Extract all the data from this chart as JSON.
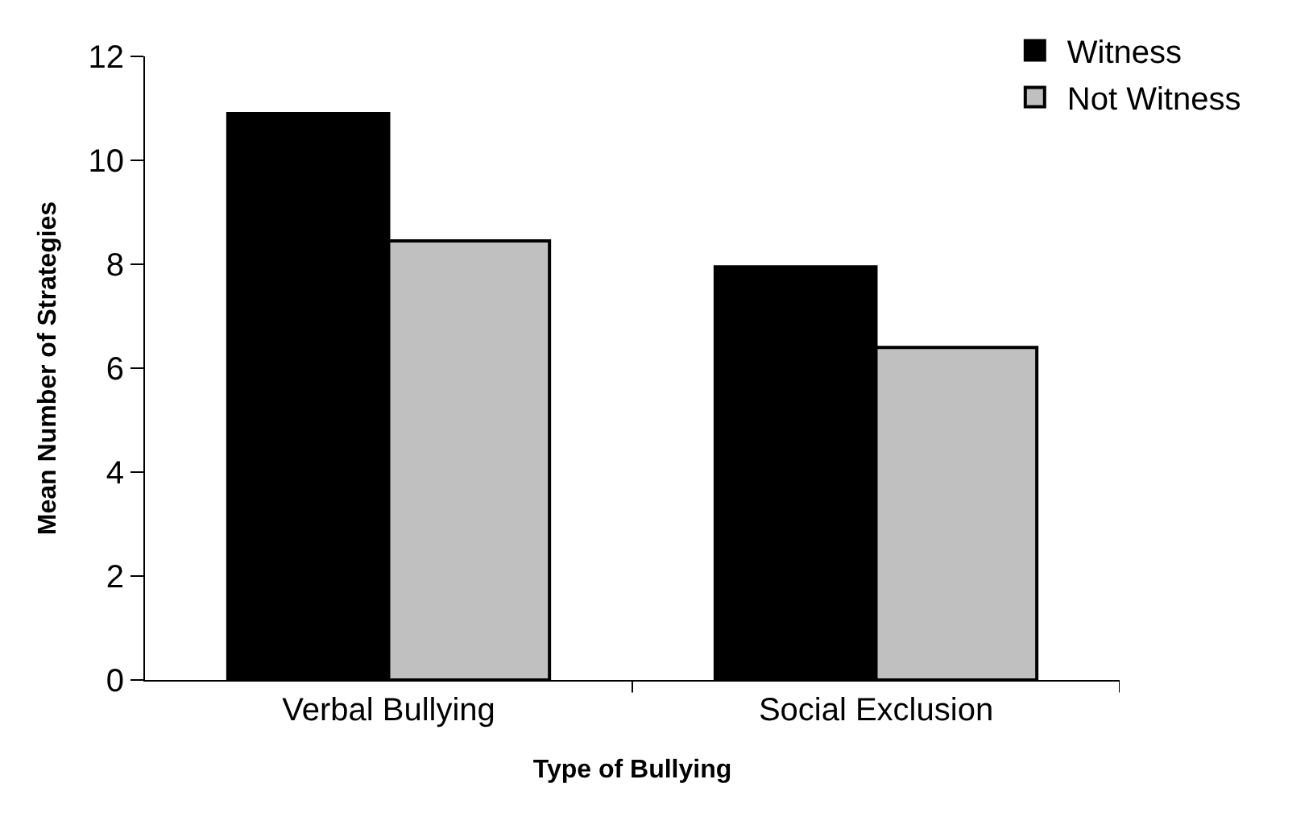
{
  "chart_data": {
    "type": "bar",
    "xlabel": "Type of Bullying",
    "ylabel": "Mean Number of Strategies",
    "categories": [
      "Verbal Bullying",
      "Social Exclusion"
    ],
    "series": [
      {
        "name": "Witness",
        "color": "#000000",
        "values": [
          10.9,
          7.95
        ]
      },
      {
        "name": "Not Witness",
        "color": "#c0c0c0",
        "values": [
          8.45,
          6.4
        ]
      }
    ],
    "ylim": [
      0,
      12
    ],
    "yticks": [
      0,
      2,
      4,
      6,
      8,
      10,
      12
    ],
    "legend": "top right"
  }
}
